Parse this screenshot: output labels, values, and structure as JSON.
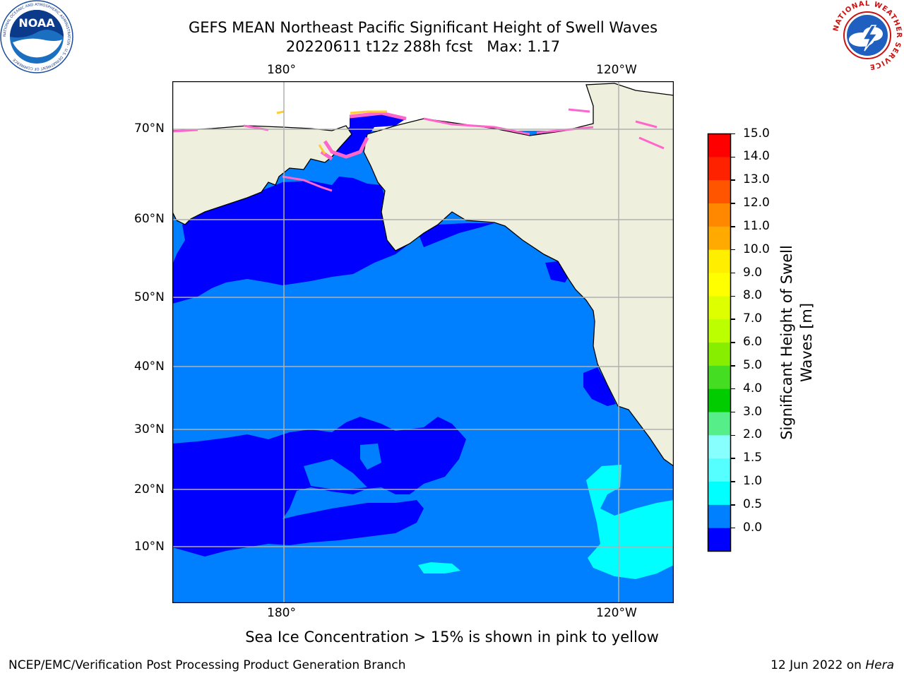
{
  "title": {
    "line1": "GEFS MEAN Northeast Pacific Significant Height of Swell Waves",
    "line2": "20220611 t12z 288h fcst   Max: 1.17"
  },
  "map": {
    "lon_labels_top": [
      "180°",
      "120°W"
    ],
    "lon_labels_bottom": [
      "180°",
      "120°W"
    ],
    "lat_labels": [
      "70°N",
      "60°N",
      "50°N",
      "40°N",
      "30°N",
      "20°N",
      "10°N"
    ],
    "colors": {
      "land": "#efefde",
      "ocean_0_0_5": "#0000ff",
      "ocean_0_5_1_0": "#0080ff",
      "ocean_1_0_1_5": "#00ffff",
      "ice_pink": "#ff66cc",
      "ice_yellow": "#ffcc33",
      "grid": "#b0b0b0",
      "coast": "#000000"
    }
  },
  "colorbar": {
    "label_line1": "Significant Height of Swell",
    "label_line2": "Waves [m]",
    "ticks": [
      "15.0",
      "14.0",
      "13.0",
      "12.0",
      "11.0",
      "10.0",
      "9.0",
      "8.0",
      "7.0",
      "6.0",
      "5.0",
      "4.0",
      "3.0",
      "2.0",
      "1.5",
      "1.0",
      "0.5",
      "0.0"
    ],
    "bands_top_to_bottom": [
      "#ff0000",
      "#ff2200",
      "#ff5500",
      "#ff8800",
      "#ffaa00",
      "#ffee00",
      "#ffff00",
      "#ddff00",
      "#bbff00",
      "#88ee00",
      "#44dd22",
      "#00cc00",
      "#55ee88",
      "#88ffff",
      "#55ffff",
      "#00ffff",
      "#0080ff",
      "#0000ff"
    ]
  },
  "note": "Sea Ice Concentration > 15% is shown in pink to yellow",
  "footer": {
    "left": "NCEP/EMC/Verification Post Processing Product Generation Branch",
    "right_prefix": "12 Jun 2022 on",
    "right_italic": "Hera"
  },
  "logos": {
    "left_text": "NOAA",
    "left_ring": "NATIONAL OCEANIC AND ATMOSPHERIC ADMINISTRATION · U.S. DEPARTMENT OF COMMERCE",
    "right_ring": "NATIONAL WEATHER SERVICE"
  }
}
